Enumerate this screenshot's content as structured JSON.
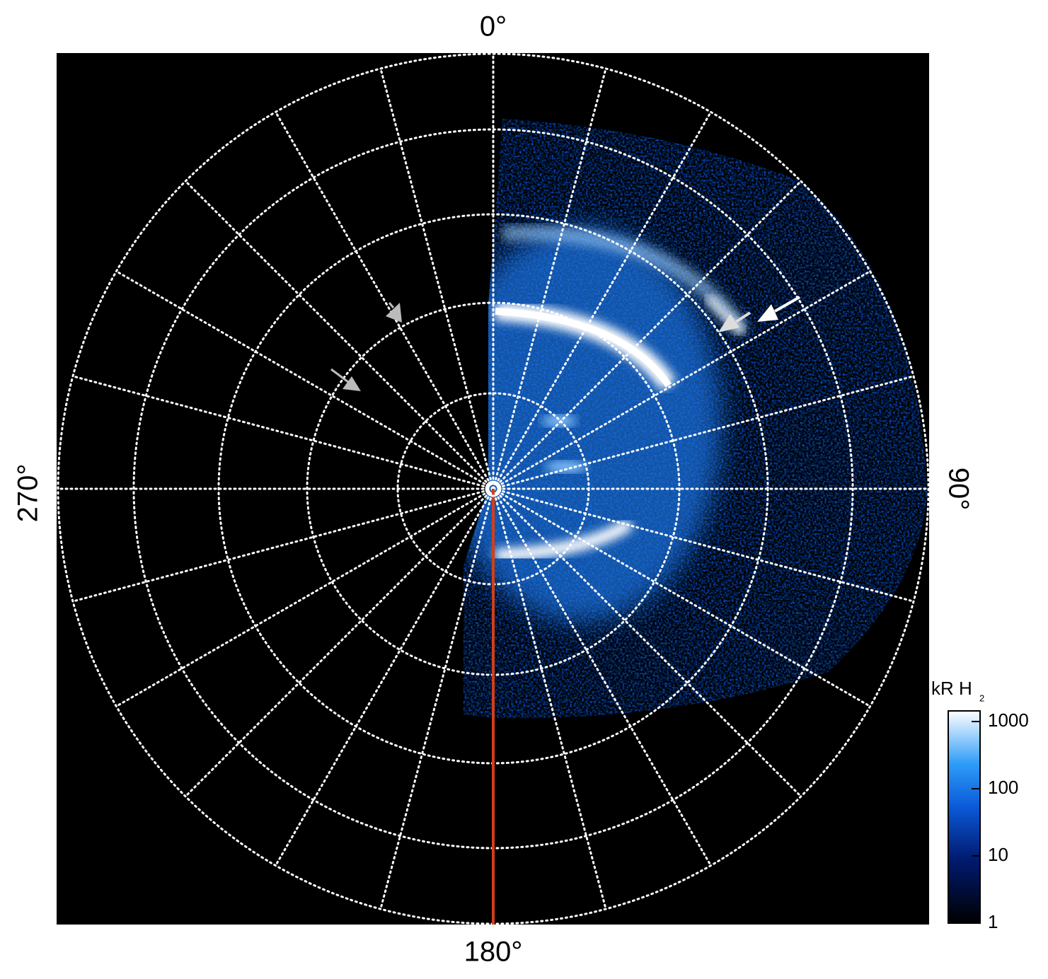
{
  "angle_labels": {
    "top": "0°",
    "right": "90°",
    "bottom": "180°",
    "left": "270°"
  },
  "colorbar": {
    "title": "kR H",
    "title_subscript": "2",
    "scale": "log",
    "lim": [
      1,
      1440
    ],
    "ticks": [
      1,
      10,
      100,
      1000
    ]
  }
}
